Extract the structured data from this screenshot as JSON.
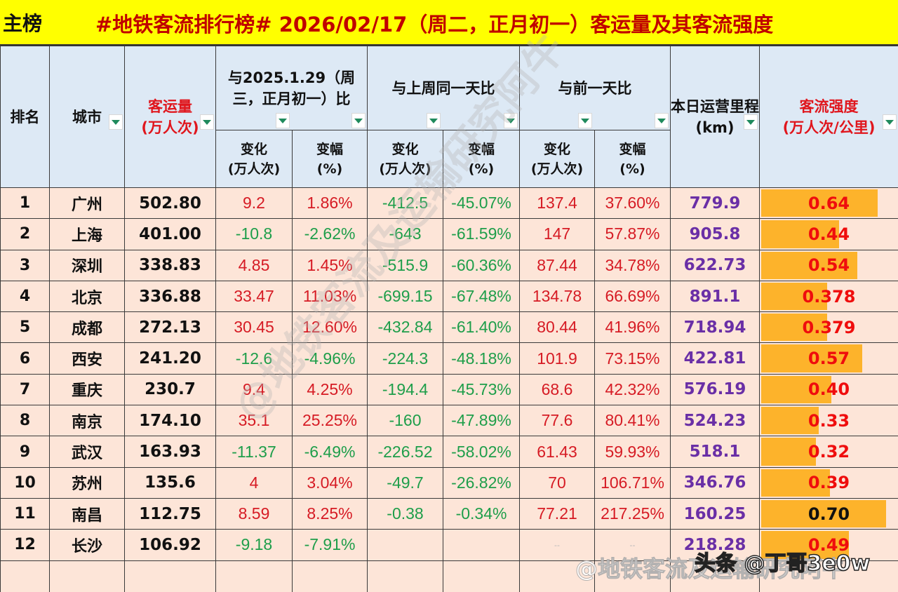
{
  "title": {
    "label": "主榜",
    "text": "#地铁客流排行榜# 2026/02/17（周二，正月初一）客运量及其客流强度"
  },
  "headers": {
    "rank": "排名",
    "city": "城市",
    "volume": "客运量\n(万人次)",
    "cmp_last_year": "与2025.1.29（周三，正月初一）比",
    "cmp_last_week": "与上周同一天比",
    "cmp_prev_day": "与前一天比",
    "mileage": "本日运营里程\n(km)",
    "intensity": "客流强度\n(万人次/公里)",
    "change": "变化\n(万人次)",
    "change_pct": "变幅\n(%)"
  },
  "colors": {
    "title_bg": "#ffff00",
    "title_text": "#c00000",
    "header_bg": "#dde9f5",
    "row_bg": "#fde5d8",
    "positive": "#d61b24",
    "negative": "#1e9e4a",
    "mileage": "#6a2fa6",
    "bar": "#fdb32b"
  },
  "rows": [
    {
      "rank": "1",
      "city": "广州",
      "volume": "502.80",
      "ly_chg": "9.2",
      "ly_pct": "1.86%",
      "lw_chg": "-412.5",
      "lw_pct": "-45.07%",
      "pd_chg": "137.4",
      "pd_pct": "37.60%",
      "km": "779.9",
      "intensity": "0.64",
      "bar_pct": 93
    },
    {
      "rank": "2",
      "city": "上海",
      "volume": "401.00",
      "ly_chg": "-10.8",
      "ly_pct": "-2.62%",
      "lw_chg": "-643",
      "lw_pct": "-61.59%",
      "pd_chg": "147",
      "pd_pct": "57.87%",
      "km": "905.8",
      "intensity": "0.44",
      "bar_pct": 62
    },
    {
      "rank": "3",
      "city": "深圳",
      "volume": "338.83",
      "ly_chg": "4.85",
      "ly_pct": "1.45%",
      "lw_chg": "-515.9",
      "lw_pct": "-60.36%",
      "pd_chg": "87.44",
      "pd_pct": "34.78%",
      "km": "622.73",
      "intensity": "0.54",
      "bar_pct": 77
    },
    {
      "rank": "4",
      "city": "北京",
      "volume": "336.88",
      "ly_chg": "33.47",
      "ly_pct": "11.03%",
      "lw_chg": "-699.15",
      "lw_pct": "-67.48%",
      "pd_chg": "134.78",
      "pd_pct": "66.69%",
      "km": "891.1",
      "intensity": "0.378",
      "bar_pct": 53
    },
    {
      "rank": "5",
      "city": "成都",
      "volume": "272.13",
      "ly_chg": "30.45",
      "ly_pct": "12.60%",
      "lw_chg": "-432.84",
      "lw_pct": "-61.40%",
      "pd_chg": "80.44",
      "pd_pct": "41.96%",
      "km": "718.94",
      "intensity": "0.379",
      "bar_pct": 53
    },
    {
      "rank": "6",
      "city": "西安",
      "volume": "241.20",
      "ly_chg": "-12.6",
      "ly_pct": "-4.96%",
      "lw_chg": "-224.3",
      "lw_pct": "-48.18%",
      "pd_chg": "101.9",
      "pd_pct": "73.15%",
      "km": "422.81",
      "intensity": "0.57",
      "bar_pct": 81
    },
    {
      "rank": "7",
      "city": "重庆",
      "volume": "230.7",
      "ly_chg": "9.4",
      "ly_pct": "4.25%",
      "lw_chg": "-194.4",
      "lw_pct": "-45.73%",
      "pd_chg": "68.6",
      "pd_pct": "42.32%",
      "km": "576.19",
      "intensity": "0.40",
      "bar_pct": 56
    },
    {
      "rank": "8",
      "city": "南京",
      "volume": "174.10",
      "ly_chg": "35.1",
      "ly_pct": "25.25%",
      "lw_chg": "-160",
      "lw_pct": "-47.89%",
      "pd_chg": "77.6",
      "pd_pct": "80.41%",
      "km": "524.23",
      "intensity": "0.33",
      "bar_pct": 46
    },
    {
      "rank": "9",
      "city": "武汉",
      "volume": "163.93",
      "ly_chg": "-11.37",
      "ly_pct": "-6.49%",
      "lw_chg": "-226.52",
      "lw_pct": "-58.02%",
      "pd_chg": "61.43",
      "pd_pct": "59.93%",
      "km": "518.1",
      "intensity": "0.32",
      "bar_pct": 44
    },
    {
      "rank": "10",
      "city": "苏州",
      "volume": "135.6",
      "ly_chg": "4",
      "ly_pct": "3.04%",
      "lw_chg": "-49.7",
      "lw_pct": "-26.82%",
      "pd_chg": "70",
      "pd_pct": "106.71%",
      "km": "346.76",
      "intensity": "0.39",
      "bar_pct": 55
    },
    {
      "rank": "11",
      "city": "南昌",
      "volume": "112.75",
      "ly_chg": "8.59",
      "ly_pct": "8.25%",
      "lw_chg": "-0.38",
      "lw_pct": "-0.34%",
      "pd_chg": "77.21",
      "pd_pct": "217.25%",
      "km": "160.25",
      "intensity": "0.70",
      "bar_pct": 100
    },
    {
      "rank": "12",
      "city": "长沙",
      "volume": "106.92",
      "ly_chg": "-9.18",
      "ly_pct": "-7.91%",
      "lw_chg": "",
      "lw_pct": "",
      "pd_chg": "--",
      "pd_pct": "--",
      "km": "218.28",
      "intensity": "0.49",
      "bar_pct": 70
    }
  ],
  "watermarks": {
    "diagonal": "@地铁客流及运输研究阿牛",
    "weibo": "@地铁客流及运输研究阿牛",
    "toutiao": "头条 @丁哥3e0w"
  }
}
